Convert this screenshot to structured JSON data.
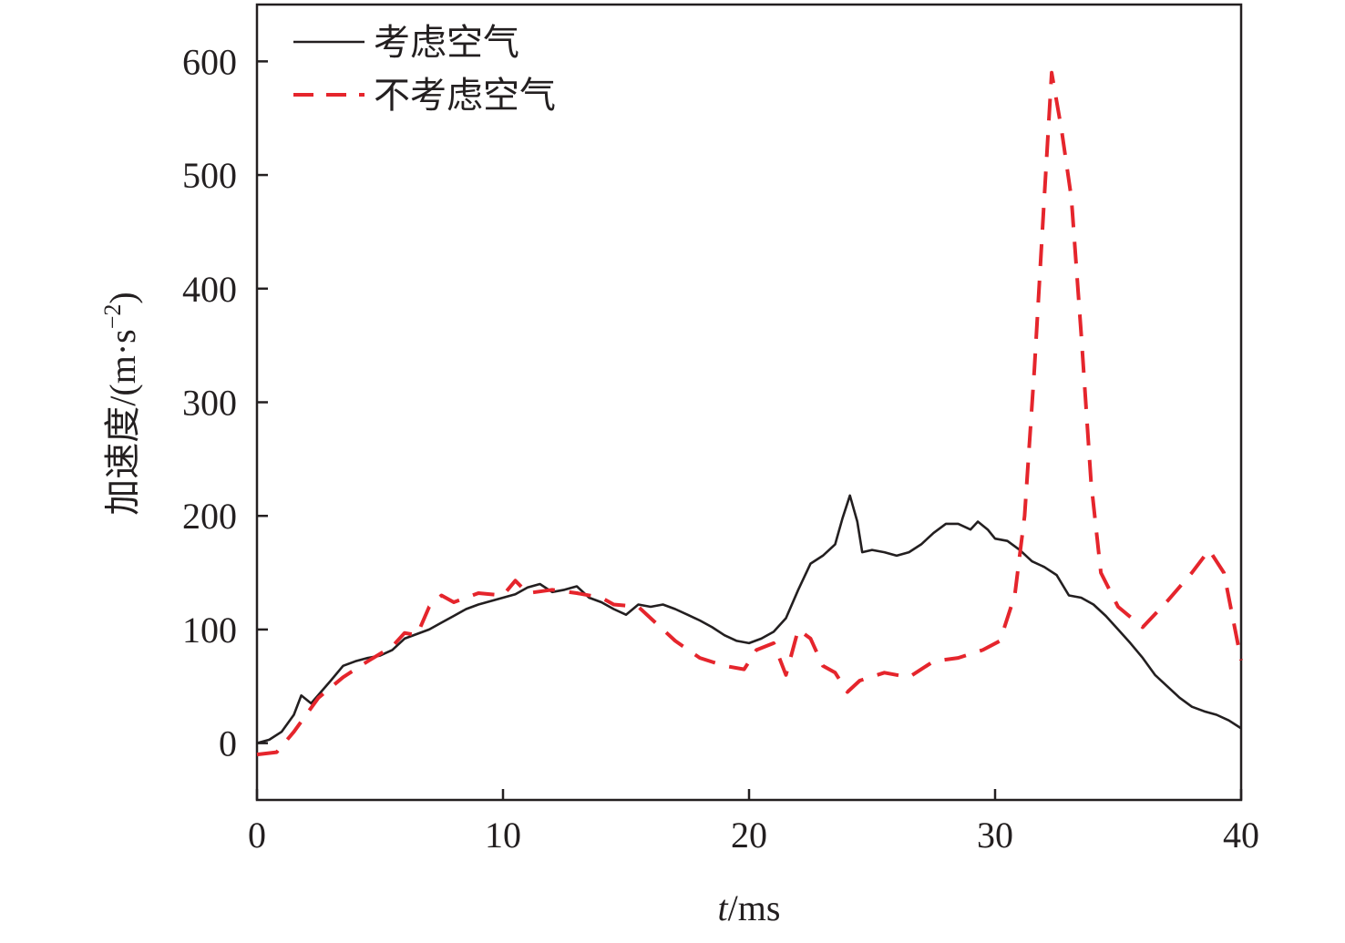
{
  "chart_data": {
    "type": "line",
    "title": "",
    "xlabel": {
      "italic": "t",
      "rest": "/ms"
    },
    "ylabel": {
      "main": "加速度/(m·s",
      "sup": "−2",
      "tail": ")"
    },
    "xlim": [
      0,
      40
    ],
    "ylim": [
      -50,
      650
    ],
    "xticks": [
      0,
      10,
      20,
      30,
      40
    ],
    "yticks": [
      0,
      100,
      200,
      300,
      400,
      500,
      600
    ],
    "xtick_labels": [
      "0",
      "10",
      "20",
      "30",
      "40"
    ],
    "ytick_labels": [
      "0",
      "100",
      "200",
      "300",
      "400",
      "500",
      "600"
    ],
    "grid": false,
    "legend_position": "top-left",
    "series": [
      {
        "name": "考虑空气",
        "color": "#231f20",
        "style": "solid",
        "points": [
          [
            0,
            0
          ],
          [
            0.5,
            3
          ],
          [
            1,
            10
          ],
          [
            1.5,
            25
          ],
          [
            1.8,
            42
          ],
          [
            2.2,
            35
          ],
          [
            2.6,
            45
          ],
          [
            3,
            55
          ],
          [
            3.5,
            68
          ],
          [
            4,
            72
          ],
          [
            4.5,
            75
          ],
          [
            5,
            77
          ],
          [
            5.5,
            82
          ],
          [
            6,
            92
          ],
          [
            6.5,
            96
          ],
          [
            7,
            100
          ],
          [
            7.5,
            106
          ],
          [
            8,
            112
          ],
          [
            8.5,
            118
          ],
          [
            9,
            122
          ],
          [
            9.5,
            125
          ],
          [
            10,
            128
          ],
          [
            10.5,
            131
          ],
          [
            11,
            137
          ],
          [
            11.5,
            140
          ],
          [
            12,
            133
          ],
          [
            12.5,
            135
          ],
          [
            13,
            138
          ],
          [
            13.5,
            128
          ],
          [
            14,
            124
          ],
          [
            14.5,
            118
          ],
          [
            15,
            113
          ],
          [
            15.5,
            122
          ],
          [
            16,
            120
          ],
          [
            16.5,
            122
          ],
          [
            17,
            118
          ],
          [
            17.5,
            113
          ],
          [
            18,
            108
          ],
          [
            18.5,
            102
          ],
          [
            19,
            95
          ],
          [
            19.5,
            90
          ],
          [
            20,
            88
          ],
          [
            20.5,
            92
          ],
          [
            21,
            98
          ],
          [
            21.5,
            110
          ],
          [
            22,
            135
          ],
          [
            22.5,
            158
          ],
          [
            23,
            165
          ],
          [
            23.5,
            175
          ],
          [
            23.8,
            198
          ],
          [
            24.1,
            218
          ],
          [
            24.4,
            195
          ],
          [
            24.6,
            168
          ],
          [
            25,
            170
          ],
          [
            25.5,
            168
          ],
          [
            26,
            165
          ],
          [
            26.5,
            168
          ],
          [
            27,
            175
          ],
          [
            27.5,
            185
          ],
          [
            28,
            193
          ],
          [
            28.5,
            193
          ],
          [
            29,
            188
          ],
          [
            29.3,
            195
          ],
          [
            29.7,
            188
          ],
          [
            30,
            180
          ],
          [
            30.5,
            178
          ],
          [
            31,
            170
          ],
          [
            31.5,
            160
          ],
          [
            32,
            155
          ],
          [
            32.5,
            148
          ],
          [
            33,
            130
          ],
          [
            33.5,
            128
          ],
          [
            34,
            122
          ],
          [
            34.5,
            112
          ],
          [
            35,
            100
          ],
          [
            35.5,
            88
          ],
          [
            36,
            75
          ],
          [
            36.5,
            60
          ],
          [
            37,
            50
          ],
          [
            37.5,
            40
          ],
          [
            38,
            32
          ],
          [
            38.5,
            28
          ],
          [
            39,
            25
          ],
          [
            39.5,
            20
          ],
          [
            40,
            13
          ]
        ]
      },
      {
        "name": "不考虑空气",
        "color": "#e5252c",
        "style": "dashed",
        "points": [
          [
            0,
            -10
          ],
          [
            0.8,
            -8
          ],
          [
            1.5,
            10
          ],
          [
            2.5,
            40
          ],
          [
            3.5,
            58
          ],
          [
            4.5,
            72
          ],
          [
            5.5,
            85
          ],
          [
            6,
            97
          ],
          [
            6.5,
            95
          ],
          [
            7,
            120
          ],
          [
            7.5,
            130
          ],
          [
            8,
            124
          ],
          [
            8.5,
            128
          ],
          [
            9,
            132
          ],
          [
            10,
            130
          ],
          [
            10.5,
            143
          ],
          [
            11,
            132
          ],
          [
            12,
            135
          ],
          [
            13,
            132
          ],
          [
            14,
            128
          ],
          [
            14.5,
            122
          ],
          [
            15.5,
            120
          ],
          [
            16,
            110
          ],
          [
            16.5,
            100
          ],
          [
            17,
            90
          ],
          [
            18,
            75
          ],
          [
            19,
            68
          ],
          [
            19.8,
            65
          ],
          [
            20.3,
            82
          ],
          [
            21,
            88
          ],
          [
            21.5,
            60
          ],
          [
            22,
            100
          ],
          [
            22.5,
            92
          ],
          [
            23,
            68
          ],
          [
            23.5,
            62
          ],
          [
            24,
            45
          ],
          [
            24.5,
            55
          ],
          [
            25.5,
            62
          ],
          [
            26.5,
            58
          ],
          [
            27.5,
            72
          ],
          [
            28.5,
            75
          ],
          [
            29.5,
            82
          ],
          [
            30.2,
            90
          ],
          [
            30.8,
            130
          ],
          [
            31.2,
            200
          ],
          [
            31.6,
            330
          ],
          [
            32,
            480
          ],
          [
            32.3,
            590
          ],
          [
            32.7,
            540
          ],
          [
            33.1,
            480
          ],
          [
            33.5,
            360
          ],
          [
            33.9,
            230
          ],
          [
            34.3,
            150
          ],
          [
            35,
            120
          ],
          [
            36,
            102
          ],
          [
            37,
            125
          ],
          [
            38,
            150
          ],
          [
            38.7,
            170
          ],
          [
            39.3,
            150
          ],
          [
            40,
            73
          ]
        ]
      }
    ]
  }
}
